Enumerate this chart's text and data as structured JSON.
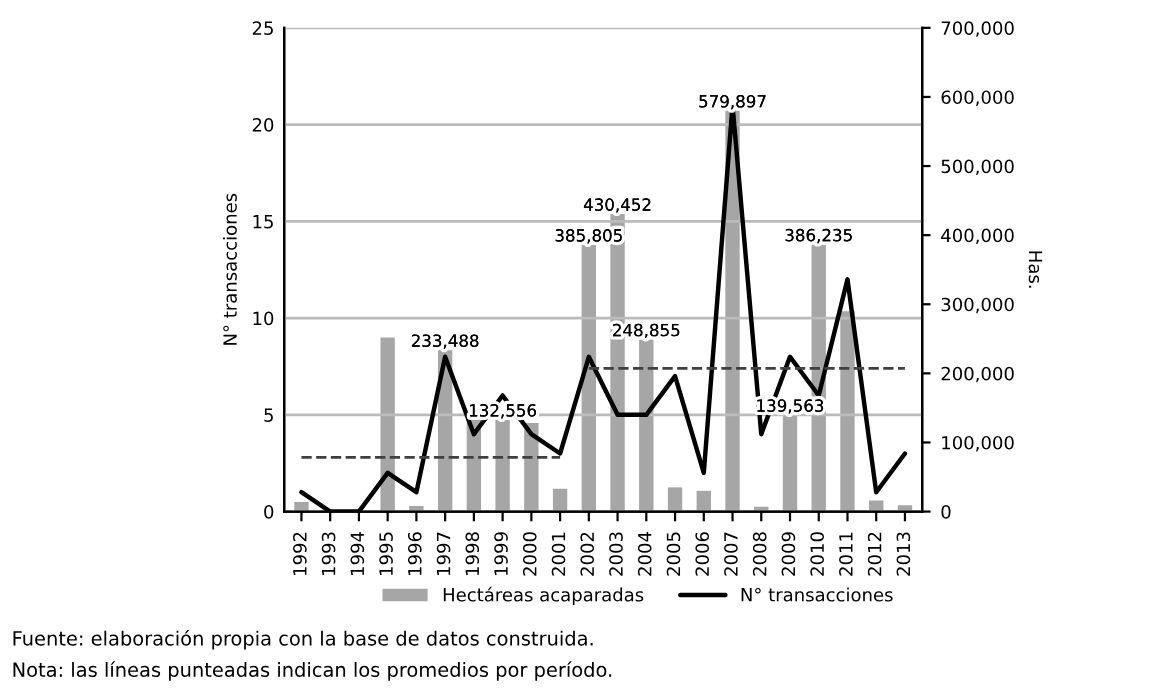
{
  "chart_data": {
    "type": "bar",
    "categories": [
      "1992",
      "1993",
      "1994",
      "1995",
      "1996",
      "1997",
      "1998",
      "1999",
      "2000",
      "2001",
      "2002",
      "2003",
      "2004",
      "2005",
      "2006",
      "2007",
      "2008",
      "2009",
      "2010",
      "2011",
      "2012",
      "2013"
    ],
    "series": [
      {
        "name": "Hectáreas acaparadas",
        "axis": "y2",
        "color": "#a6a6a6",
        "values": [
          14000,
          0,
          0,
          252000,
          8000,
          233488,
          140000,
          132556,
          128000,
          33000,
          385805,
          430452,
          248855,
          35000,
          30000,
          579897,
          7000,
          139563,
          386235,
          290000,
          16000,
          9000
        ],
        "value_labels": [
          null,
          null,
          null,
          null,
          null,
          "233,488",
          null,
          "132,556",
          null,
          null,
          "385,805",
          "430,452",
          "248,855",
          null,
          null,
          "579,897",
          null,
          "139,563",
          "386,235",
          null,
          null,
          null
        ]
      },
      {
        "name": "N° transacciones",
        "type": "line",
        "axis": "y",
        "color": "#000000",
        "values": [
          1,
          0,
          0,
          2,
          1,
          8,
          4,
          6,
          4,
          3,
          8,
          5,
          5,
          7,
          2,
          21,
          4,
          8,
          6,
          12,
          1,
          3
        ]
      },
      {
        "type": "line",
        "axis": "y",
        "color": "#404040",
        "line_style": "dashed",
        "values": [
          2.8,
          2.8,
          2.8,
          2.8,
          2.8,
          2.8,
          2.8,
          2.8,
          2.8,
          2.8,
          null,
          null,
          null,
          null,
          null,
          null,
          null,
          null,
          null,
          null,
          null,
          null
        ]
      },
      {
        "type": "line",
        "axis": "y",
        "color": "#404040",
        "line_style": "dashed",
        "values": [
          null,
          null,
          null,
          null,
          null,
          null,
          null,
          null,
          null,
          null,
          7.4,
          7.4,
          7.4,
          7.4,
          7.4,
          7.4,
          7.4,
          7.4,
          7.4,
          7.4,
          7.4,
          7.4
        ]
      }
    ],
    "ylabel": "N° transacciones",
    "y2label": "Has.",
    "ylim": [
      0,
      25
    ],
    "yticks": [
      0,
      5,
      10,
      15,
      20,
      25
    ],
    "y2lim": [
      0,
      700000
    ],
    "y2ticks": [
      {
        "value": 0,
        "label": "0"
      },
      {
        "value": 100000,
        "label": "100,000"
      },
      {
        "value": 200000,
        "label": "200,000"
      },
      {
        "value": 300000,
        "label": "300,000"
      },
      {
        "value": 400000,
        "label": "400,000"
      },
      {
        "value": 500000,
        "label": "500,000"
      },
      {
        "value": 600000,
        "label": "600,000"
      },
      {
        "value": 700000,
        "label": "700,000"
      }
    ],
    "grid": "y",
    "legend": "bottom",
    "annotations": [
      "Fuente: elaboración propia con la base de datos construida.",
      "Nota: las líneas punteadas indican los promedios por período."
    ]
  }
}
